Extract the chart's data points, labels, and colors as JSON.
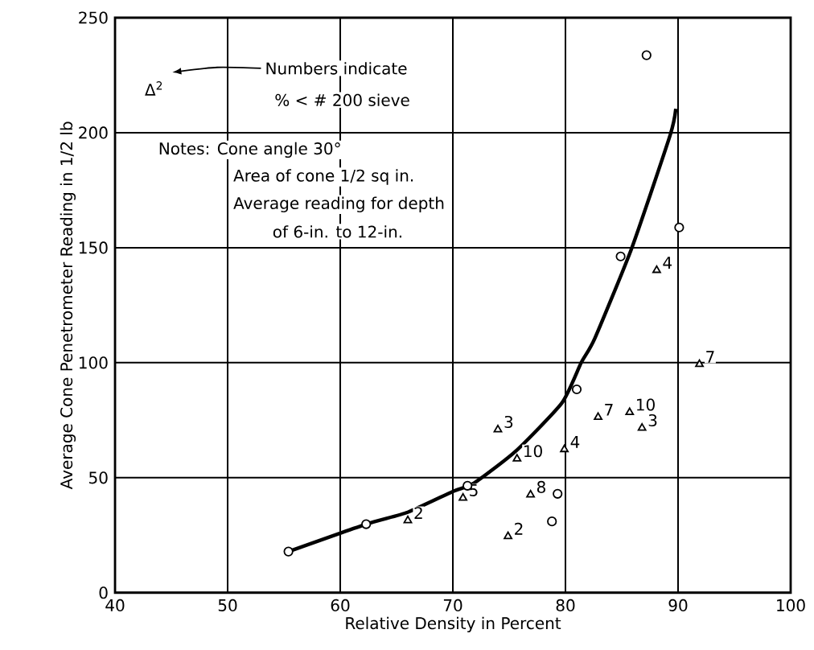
{
  "chart_data": {
    "type": "scatter",
    "xlabel": "Relative Density in Percent",
    "ylabel": "Average Cone Penetrometer Reading in 1/2 lb",
    "xlim": [
      40,
      100
    ],
    "ylim": [
      0,
      250
    ],
    "xticks": [
      40,
      50,
      60,
      70,
      80,
      90,
      100
    ],
    "yticks": [
      0,
      50,
      100,
      150,
      200,
      250
    ],
    "grid": true,
    "series": [
      {
        "marker": "circle",
        "color": "#000000",
        "x": [
          55.4,
          62.3,
          71.3,
          78.8,
          79.3,
          81.0,
          84.9,
          87.2,
          90.1
        ],
        "values": [
          17.9,
          29.8,
          46.5,
          31,
          43,
          88.4,
          146.2,
          233.7,
          158.8
        ]
      },
      {
        "marker": "triangle",
        "color": "#000000",
        "x": [
          66.0,
          70.9,
          74.0,
          74.9,
          75.7,
          76.9,
          79.9,
          82.9,
          85.7,
          86.8,
          88.1,
          91.9
        ],
        "values": [
          31.4,
          41.2,
          70.9,
          24.5,
          58.2,
          42.6,
          62.3,
          76.3,
          78.4,
          71.6,
          140.2,
          99.3
        ]
      },
      {
        "type": "line",
        "marker": "none",
        "color": "#000000",
        "x": [
          55.4,
          62.3,
          66,
          70,
          71.9,
          75.6,
          79.7,
          81.4,
          82.6,
          85.9,
          89.3,
          89.8
        ],
        "values": [
          17.9,
          29.8,
          35,
          44,
          47.7,
          61.6,
          82.6,
          100,
          110.5,
          150,
          199,
          210.4
        ]
      }
    ],
    "annotations": [
      "Δ$^{2}$",
      "Numbers indicate",
      "% < # 200 sieve",
      "Notes: Cone angle 30°",
      "Area of cone 1/2 sq in.",
      "Average reading for depth",
      "of 6-in. to 12-in.",
      {
        "text": "2",
        "x": 66.0,
        "y": 31.4
      },
      {
        "text": "5",
        "x": 70.9,
        "y": 41.2
      },
      {
        "text": "3",
        "x": 74.0,
        "y": 70.9
      },
      {
        "text": "2",
        "x": 74.9,
        "y": 24.5
      },
      {
        "text": "10",
        "x": 75.7,
        "y": 58.2
      },
      {
        "text": "8",
        "x": 76.9,
        "y": 42.6
      },
      {
        "text": "4",
        "x": 79.9,
        "y": 62.3
      },
      {
        "text": "7",
        "x": 82.9,
        "y": 76.3
      },
      {
        "text": "10",
        "x": 85.7,
        "y": 78.4
      },
      {
        "text": "3",
        "x": 86.8,
        "y": 71.6
      },
      {
        "text": "4",
        "x": 88.1,
        "y": 140.2
      },
      {
        "text": "7",
        "x": 91.9,
        "y": 99.3
      }
    ]
  }
}
